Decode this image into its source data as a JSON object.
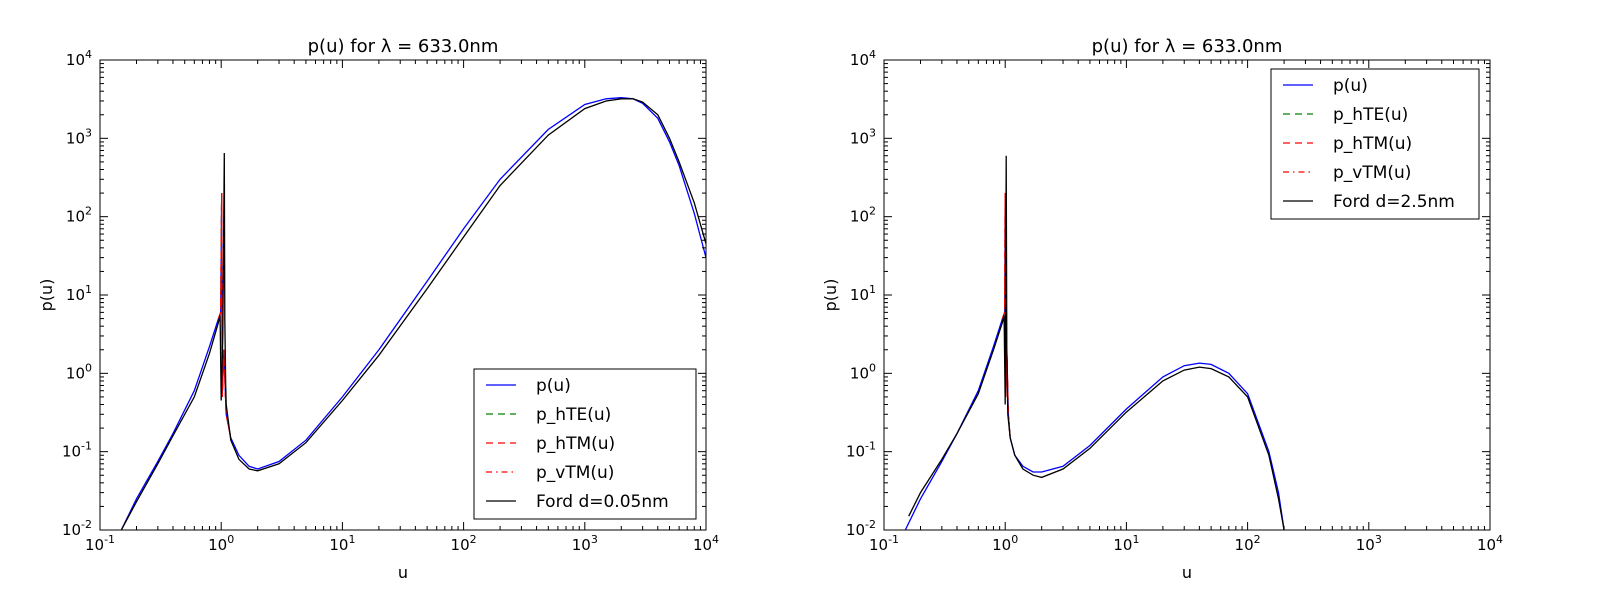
{
  "chart_data": [
    {
      "type": "line",
      "title": "p(u) for λ = 633.0nm",
      "xlabel": "u",
      "ylabel": "p(u)",
      "xscale": "log",
      "yscale": "log",
      "xlim": [
        0.1,
        10000
      ],
      "ylim": [
        0.01,
        10000
      ],
      "xtick_labels": [
        "10-1",
        "100",
        "101",
        "102",
        "103",
        "104"
      ],
      "ytick_labels": [
        "10-2",
        "10-1",
        "100",
        "101",
        "102",
        "103",
        "104"
      ],
      "legend_position": "lower-right",
      "grid": false,
      "series": [
        {
          "name": "p(u)",
          "color": "#0000ff",
          "style": "solid",
          "x": [
            0.15,
            0.2,
            0.3,
            0.4,
            0.6,
            0.8,
            0.95,
            0.99,
            1.01,
            1.02,
            1.05,
            1.1,
            1.2,
            1.4,
            1.7,
            2,
            3,
            5,
            10,
            20,
            50,
            100,
            200,
            500,
            1000,
            1500,
            2000,
            2500,
            3000,
            4000,
            5000,
            6000,
            8000,
            10000
          ],
          "y": [
            0.01,
            0.025,
            0.075,
            0.17,
            0.6,
            2.2,
            5,
            6,
            200,
            0.5,
            2,
            0.3,
            0.15,
            0.09,
            0.065,
            0.06,
            0.075,
            0.14,
            0.5,
            2,
            15,
            70,
            300,
            1300,
            2700,
            3200,
            3300,
            3200,
            2800,
            1800,
            900,
            450,
            110,
            30
          ]
        },
        {
          "name": "p_hTE(u)",
          "color": "#008000",
          "style": "dashed",
          "x": [
            0.95,
            0.99,
            1.01,
            1.02,
            1.05,
            1.1,
            1.2
          ],
          "y": [
            5,
            6,
            200,
            0.5,
            2,
            0.3,
            0.15
          ]
        },
        {
          "name": "p_hTM(u)",
          "color": "#ff0000",
          "style": "dashed",
          "x": [
            0.95,
            0.99,
            1.01,
            1.02,
            1.05,
            1.1,
            1.2
          ],
          "y": [
            5,
            6,
            200,
            0.5,
            2,
            0.3,
            0.15
          ]
        },
        {
          "name": "p_vTM(u)",
          "color": "#ff0000",
          "style": "dashdot",
          "x": [
            0.95,
            0.99,
            1.01,
            1.02,
            1.05,
            1.1,
            1.2
          ],
          "y": [
            5,
            6,
            200,
            0.5,
            2,
            0.3,
            0.15
          ]
        },
        {
          "name": "Ford d=0.05nm",
          "color": "#000000",
          "style": "solid",
          "x": [
            0.15,
            0.2,
            0.3,
            0.4,
            0.6,
            0.8,
            0.95,
            0.98,
            1.0,
            1.03,
            1.06,
            1.07,
            1.09,
            1.1,
            1.2,
            1.4,
            1.7,
            2,
            3,
            5,
            10,
            20,
            50,
            100,
            200,
            500,
            1000,
            1500,
            2000,
            2500,
            3000,
            4000,
            5000,
            6000,
            8000,
            10000
          ],
          "y": [
            0.01,
            0.023,
            0.07,
            0.16,
            0.5,
            1.8,
            4.5,
            5.5,
            0.45,
            3,
            650,
            5,
            0.7,
            0.4,
            0.14,
            0.08,
            0.06,
            0.057,
            0.07,
            0.13,
            0.45,
            1.7,
            12,
            55,
            250,
            1100,
            2400,
            3000,
            3200,
            3200,
            2900,
            2000,
            1000,
            500,
            150,
            45
          ]
        }
      ]
    },
    {
      "type": "line",
      "title": "p(u) for λ = 633.0nm",
      "xlabel": "u",
      "ylabel": "p(u)",
      "xscale": "log",
      "yscale": "log",
      "xlim": [
        0.1,
        10000
      ],
      "ylim": [
        0.01,
        10000
      ],
      "xtick_labels": [
        "10-1",
        "100",
        "101",
        "102",
        "103",
        "104"
      ],
      "ytick_labels": [
        "10-2",
        "10-1",
        "100",
        "101",
        "102",
        "103",
        "104"
      ],
      "legend_position": "upper-right",
      "grid": false,
      "series": [
        {
          "name": "p(u)",
          "color": "#0000ff",
          "style": "solid",
          "x": [
            0.15,
            0.2,
            0.3,
            0.4,
            0.6,
            0.8,
            0.95,
            0.99,
            1.0,
            1.01,
            1.03,
            1.06,
            1.1,
            1.2,
            1.4,
            1.7,
            2,
            3,
            5,
            10,
            20,
            30,
            40,
            50,
            70,
            100,
            150,
            180,
            200
          ],
          "y": [
            0.01,
            0.025,
            0.075,
            0.17,
            0.6,
            2.2,
            5,
            6,
            200,
            0.5,
            2,
            0.3,
            0.15,
            0.09,
            0.065,
            0.055,
            0.055,
            0.065,
            0.12,
            0.35,
            0.9,
            1.25,
            1.35,
            1.3,
            1.0,
            0.55,
            0.1,
            0.03,
            0.01
          ]
        },
        {
          "name": "p_hTE(u)",
          "color": "#008000",
          "style": "dashed",
          "x": [
            0.95,
            0.99,
            1.0,
            1.01,
            1.03,
            1.06,
            1.1
          ],
          "y": [
            5,
            6,
            200,
            0.5,
            2,
            0.3,
            0.15
          ]
        },
        {
          "name": "p_hTM(u)",
          "color": "#ff0000",
          "style": "dashed",
          "x": [
            0.95,
            0.99,
            1.0,
            1.01,
            1.03,
            1.06,
            1.1
          ],
          "y": [
            5,
            6,
            200,
            0.5,
            2,
            0.3,
            0.15
          ]
        },
        {
          "name": "p_vTM(u)",
          "color": "#ff0000",
          "style": "dashdot",
          "x": [
            0.95,
            0.99,
            1.0,
            1.01,
            1.03,
            1.06,
            1.1
          ],
          "y": [
            5,
            6,
            200,
            0.5,
            2,
            0.3,
            0.15
          ]
        },
        {
          "name": "Ford d=2.5nm",
          "color": "#000000",
          "style": "solid",
          "x": [
            0.16,
            0.2,
            0.3,
            0.4,
            0.6,
            0.8,
            0.95,
            0.98,
            1.0,
            1.02,
            1.03,
            1.05,
            1.1,
            1.2,
            1.4,
            1.7,
            2,
            3,
            5,
            10,
            20,
            30,
            40,
            50,
            70,
            100,
            150,
            180,
            200
          ],
          "y": [
            0.015,
            0.03,
            0.08,
            0.17,
            0.55,
            2.0,
            4.5,
            5.5,
            0.4,
            600,
            2,
            0.3,
            0.15,
            0.09,
            0.06,
            0.05,
            0.047,
            0.06,
            0.11,
            0.32,
            0.8,
            1.1,
            1.2,
            1.15,
            0.9,
            0.5,
            0.09,
            0.025,
            0.01
          ]
        }
      ]
    }
  ]
}
